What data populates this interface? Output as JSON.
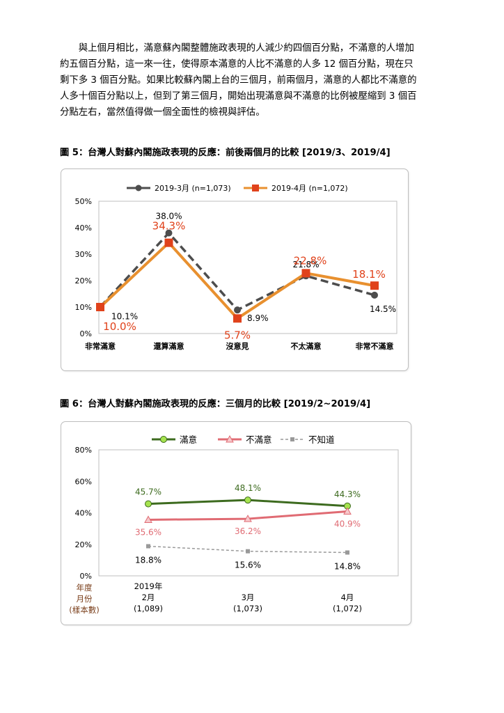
{
  "paragraph": [
    "　　與上個月相比，滿意蘇內閣整體施政表現的人減少約四個百分點，不滿意的人增加",
    "約五個百分點，這一來一往，使得原本滿意的人比不滿意的人多 12 個百分點，現在只",
    "剩下多 3 個百分點。如果比較蘇內閣上台的三個月，前兩個月，滿意的人都比不滿意的",
    "人多十個百分點以上，但到了第三個月，開始出現滿意與不滿意的比例被壓縮到 3 個百",
    "分點左右，當然值得做一個全面性的檢視與評估。"
  ],
  "figure5": {
    "caption": "圖 5：台灣人對蘇內閣施政表現的反應：前後兩個月的比較 [2019/3、2019/4]"
  },
  "figure6": {
    "caption": "圖 6：台灣人對蘇內閣施政表現的反應：三個月的比較 [2019/2~2019/4]"
  },
  "chart_data": [
    {
      "type": "line",
      "categories": [
        "非常滿意",
        "還算滿意",
        "沒意見",
        "不太滿意",
        "非常不滿意"
      ],
      "series": [
        {
          "name": "2019-3月 (n=1,073)",
          "values": [
            10.1,
            38.0,
            8.9,
            21.8,
            14.5
          ],
          "labels": [
            "10.1%",
            "38.0%",
            "8.9%",
            "21.8%",
            "14.5%"
          ],
          "color": "#4d4d4d"
        },
        {
          "name": "2019-4月 (n=1,072)",
          "values": [
            10.0,
            34.3,
            5.7,
            22.8,
            18.1
          ],
          "labels": [
            "10.0%",
            "34.3%",
            "5.7%",
            "22.8%",
            "18.1%"
          ],
          "color": "#e8902f"
        }
      ],
      "ylim": [
        0,
        50
      ],
      "yticks": [
        "0%",
        "10%",
        "20%",
        "30%",
        "40%",
        "50%"
      ],
      "legend": "top",
      "grid": false
    },
    {
      "type": "line",
      "categories": [
        "2019年 2月 (1,089)",
        "3月 (1,073)",
        "4月 (1,072)"
      ],
      "category_lines": [
        [
          "2019年",
          "2月",
          "(1,089)"
        ],
        [
          "3月",
          "(1,073)"
        ],
        [
          "4月",
          "(1,072)"
        ]
      ],
      "axis_label": [
        "年度",
        "月份",
        "(樣本數)"
      ],
      "series": [
        {
          "name": "滿意",
          "values": [
            45.7,
            48.1,
            44.3
          ],
          "labels": [
            "45.7%",
            "48.1%",
            "44.3%"
          ],
          "color": "#3d6b1f"
        },
        {
          "name": "不滿意",
          "values": [
            35.6,
            36.2,
            40.9
          ],
          "labels": [
            "35.6%",
            "36.2%",
            "40.9%"
          ],
          "color": "#e06b73"
        },
        {
          "name": "不知道",
          "values": [
            18.8,
            15.6,
            14.8
          ],
          "labels": [
            "18.8%",
            "15.6%",
            "14.8%"
          ],
          "color": "#999999"
        }
      ],
      "ylim": [
        0,
        80
      ],
      "yticks": [
        "0%",
        "20%",
        "40%",
        "60%",
        "80%"
      ],
      "legend": "top",
      "grid": false
    }
  ]
}
